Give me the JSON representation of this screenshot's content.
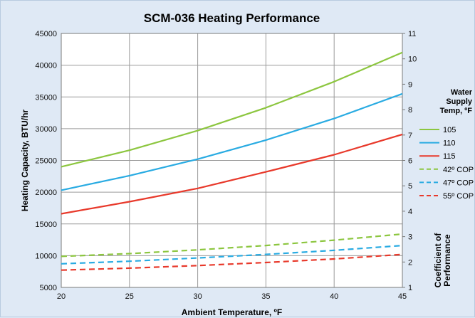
{
  "chart_data": {
    "type": "line",
    "title": "SCM-036 Heating Performance",
    "xlabel": "Ambient Temperature, ºF",
    "ylabel": "Heating Capacity, BTU/hr",
    "y2label": [
      "Coefficient of",
      "Performance"
    ],
    "xlim": [
      20,
      45
    ],
    "ylim": [
      5000,
      45000
    ],
    "y2lim": [
      1,
      11
    ],
    "x_ticks": [
      20,
      25,
      30,
      35,
      40,
      45
    ],
    "y_ticks": [
      5000,
      10000,
      15000,
      20000,
      25000,
      30000,
      35000,
      40000,
      45000
    ],
    "y2_ticks": [
      1,
      2,
      3,
      4,
      5,
      6,
      7,
      8,
      9,
      10,
      11
    ],
    "grid": true,
    "legend_position": "right",
    "legend_title": [
      "Water",
      "Supply",
      "Temp, ºF"
    ],
    "x": [
      20,
      25,
      30,
      35,
      40,
      45
    ],
    "series": [
      {
        "name": "105",
        "axis": "left",
        "style": "solid",
        "color": "#8cc63f",
        "values": [
          24000,
          26600,
          29700,
          33300,
          37400,
          42000
        ]
      },
      {
        "name": "110",
        "axis": "left",
        "style": "solid",
        "color": "#29abe2",
        "values": [
          20300,
          22600,
          25200,
          28200,
          31600,
          35500
        ]
      },
      {
        "name": "115",
        "axis": "left",
        "style": "solid",
        "color": "#e8392b",
        "values": [
          16600,
          18500,
          20600,
          23200,
          25900,
          29100
        ]
      },
      {
        "name": "42º COP",
        "axis": "right",
        "style": "dashed",
        "color": "#8cc63f",
        "values": [
          2.22,
          2.33,
          2.48,
          2.65,
          2.86,
          3.1
        ]
      },
      {
        "name": "47º COP",
        "axis": "right",
        "style": "dashed",
        "color": "#29abe2",
        "values": [
          1.93,
          2.03,
          2.16,
          2.3,
          2.46,
          2.65
        ]
      },
      {
        "name": "55º COP",
        "axis": "right",
        "style": "dashed",
        "color": "#e8392b",
        "values": [
          1.68,
          1.76,
          1.86,
          1.98,
          2.12,
          2.3
        ]
      }
    ]
  }
}
